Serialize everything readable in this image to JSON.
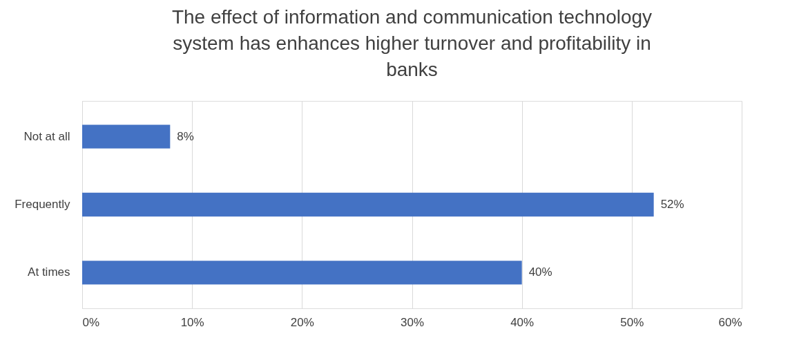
{
  "chart_data": {
    "type": "bar",
    "orientation": "horizontal",
    "title": "The effect of  information and communication technology system has enhances higher turnover and profitability in banks",
    "categories": [
      "Not at all",
      "Frequently",
      "At times"
    ],
    "values": [
      8,
      52,
      40
    ],
    "value_labels": [
      "8%",
      "52%",
      "40%"
    ],
    "color": "#4472c4",
    "xlim": [
      0,
      60
    ],
    "xticks": [
      {
        "value": 0,
        "label": "0%"
      },
      {
        "value": 10,
        "label": "10%"
      },
      {
        "value": 20,
        "label": "20%"
      },
      {
        "value": 30,
        "label": "30%"
      },
      {
        "value": 40,
        "label": "40%"
      },
      {
        "value": 50,
        "label": "50%"
      },
      {
        "value": 60,
        "label": "60%"
      }
    ],
    "grid": "x"
  }
}
